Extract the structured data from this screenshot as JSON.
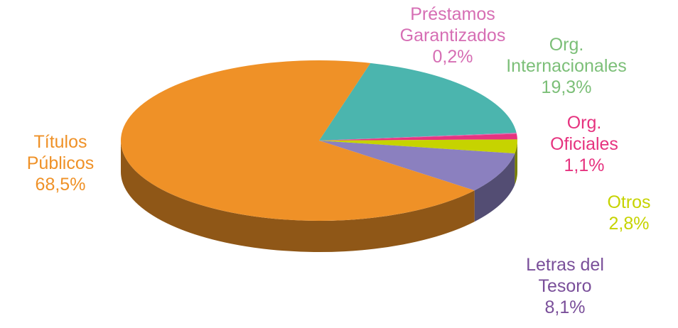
{
  "chart_data": {
    "type": "pie",
    "categories": [
      "Org. Internacionales",
      "Préstamos Garantizados",
      "Org. Oficiales",
      "Otros",
      "Letras del Tesoro",
      "Títulos Públicos"
    ],
    "values": [
      19.3,
      0.2,
      1.1,
      2.8,
      8.1,
      68.5
    ],
    "value_labels": [
      "19,3%",
      "0,2%",
      "1,1%",
      "2,8%",
      "8,1%",
      "68,5%"
    ],
    "colors": [
      "#4bb5ae",
      "#d66eb4",
      "#e6337f",
      "#c6d300",
      "#8b80bf",
      "#ef9127"
    ],
    "label_colors": [
      "#7cbf78",
      "#d66eb4",
      "#e6337f",
      "#c6d300",
      "#7a4f9a",
      "#ef9127"
    ]
  }
}
